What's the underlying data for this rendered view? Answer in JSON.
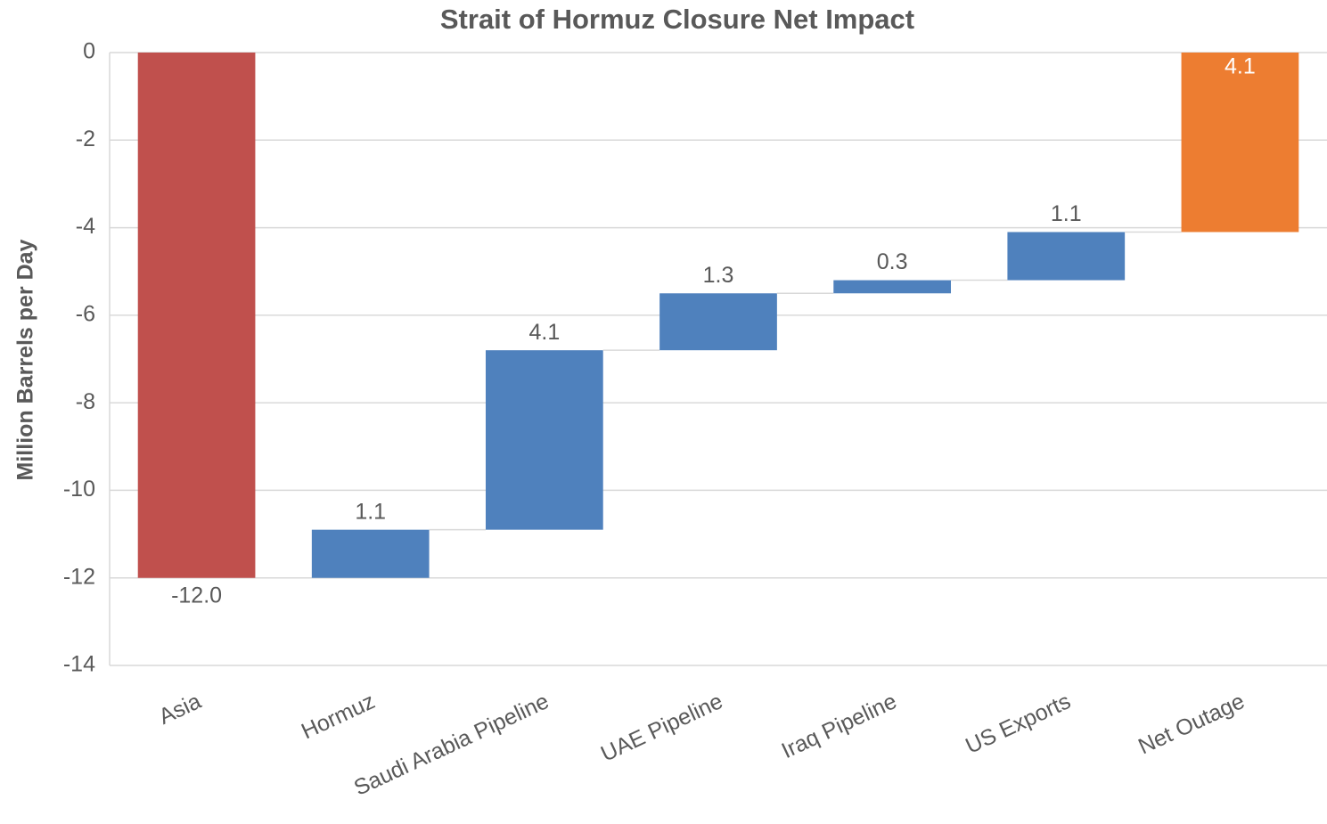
{
  "chart_data": {
    "type": "waterfall",
    "title": "Strait of Hormuz Closure Net Impact",
    "y_label": "Million Barrels per Day",
    "categories": [
      "Asia",
      "Hormuz",
      "Saudi Arabia Pipeline",
      "UAE Pipeline",
      "Iraq Pipeline",
      "US Exports",
      "Net Outage"
    ],
    "values": [
      -12,
      1.1,
      4.1,
      1.3,
      0.3,
      1.1,
      4.1
    ],
    "value_labels": [
      "-12.0",
      "1.1",
      "4.1",
      "1.3",
      "0.3",
      "1.1",
      "4.1"
    ],
    "colors": [
      "#c0504d",
      "#4f81bd",
      "#4f81bd",
      "#4f81bd",
      "#4f81bd",
      "#4f81bd",
      "#ed7d31"
    ],
    "ylim": [
      -14,
      0
    ],
    "yticks": [
      0,
      -2,
      -4,
      -6,
      -8,
      -10,
      -12,
      -14
    ],
    "grid": true
  }
}
